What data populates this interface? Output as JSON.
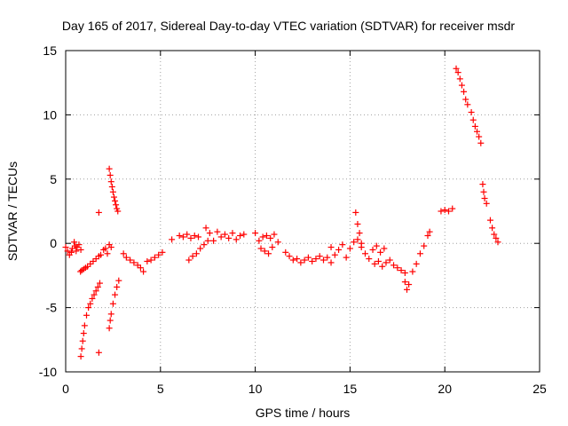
{
  "chart_data": {
    "type": "scatter",
    "title": "Day 165 of 2017, Sidereal Day-to-day VTEC variation (SDTVAR) for receiver msdr",
    "xlabel": "GPS time / hours",
    "ylabel": "SDTVAR / TECUs",
    "xlim": [
      0,
      25
    ],
    "ylim": [
      -10,
      15
    ],
    "xticks": [
      0,
      5,
      10,
      15,
      20,
      25
    ],
    "yticks": [
      -10,
      -5,
      0,
      5,
      10,
      15
    ],
    "xtick_labels": [
      "0",
      "5",
      "10",
      "15",
      "20",
      "25"
    ],
    "ytick_labels": [
      "-10",
      "-5",
      "0",
      "5",
      "10",
      "15"
    ],
    "grid": true,
    "marker": "plus",
    "marker_color": "#ff0000",
    "segments": [
      {
        "x": [
          0.0,
          0.1,
          0.2,
          0.3,
          0.35
        ],
        "y": [
          -0.3,
          -0.6,
          -0.9,
          -0.7,
          -0.4
        ]
      },
      {
        "x": [
          0.45,
          0.5,
          0.55,
          0.6,
          0.7,
          0.8
        ],
        "y": [
          0.1,
          -0.2,
          -0.6,
          -0.3,
          -0.1,
          -0.5
        ]
      },
      {
        "x": [
          0.78,
          0.85,
          0.95,
          1.05,
          1.15,
          1.3,
          1.45,
          1.6,
          1.75,
          1.85
        ],
        "y": [
          -2.2,
          -2.1,
          -2.0,
          -1.9,
          -1.8,
          -1.6,
          -1.4,
          -1.2,
          -1.0,
          -0.9
        ]
      },
      {
        "x": [
          0.8,
          0.85,
          0.9,
          0.95,
          1.0,
          1.1,
          1.2,
          1.3,
          1.4,
          1.5,
          1.6,
          1.7,
          1.8
        ],
        "y": [
          -8.8,
          -8.2,
          -7.6,
          -7.0,
          -6.4,
          -5.6,
          -5.0,
          -4.7,
          -4.3,
          -4.0,
          -3.7,
          -3.4,
          -3.1
        ]
      },
      {
        "x": [
          1.75
        ],
        "y": [
          -8.5
        ]
      },
      {
        "x": [
          1.75
        ],
        "y": [
          2.4
        ]
      },
      {
        "x": [
          2.0,
          2.1,
          2.2,
          2.3,
          2.4
        ],
        "y": [
          -0.5,
          -0.4,
          -0.8,
          -0.1,
          -0.3
        ]
      },
      {
        "x": [
          2.3,
          2.35,
          2.4,
          2.45,
          2.5,
          2.55,
          2.6,
          2.65,
          2.7,
          2.75
        ],
        "y": [
          5.8,
          5.3,
          4.8,
          4.4,
          4.0,
          3.6,
          3.3,
          3.0,
          2.7,
          2.5
        ]
      },
      {
        "x": [
          2.3,
          2.35,
          2.4,
          2.5,
          2.6,
          2.7,
          2.8
        ],
        "y": [
          -6.6,
          -6.0,
          -5.5,
          -4.7,
          -4.0,
          -3.4,
          -2.9
        ]
      },
      {
        "x": [
          3.05,
          3.2,
          3.4,
          3.6,
          3.8,
          3.95,
          4.1
        ],
        "y": [
          -0.8,
          -1.1,
          -1.3,
          -1.5,
          -1.7,
          -1.9,
          -2.2
        ]
      },
      {
        "x": [
          4.3,
          4.5,
          4.7,
          4.9,
          5.1
        ],
        "y": [
          -1.4,
          -1.3,
          -1.1,
          -0.9,
          -0.7
        ]
      },
      {
        "x": [
          5.6
        ],
        "y": [
          0.3
        ]
      },
      {
        "x": [
          6.0,
          6.2,
          6.4,
          6.6,
          6.8,
          7.0
        ],
        "y": [
          0.6,
          0.5,
          0.7,
          0.4,
          0.6,
          0.5
        ]
      },
      {
        "x": [
          6.5,
          6.7,
          6.9,
          7.1,
          7.3,
          7.5
        ],
        "y": [
          -1.3,
          -1.0,
          -0.8,
          -0.4,
          -0.1,
          0.2
        ]
      },
      {
        "x": [
          7.4,
          7.6,
          7.8,
          8.0,
          8.2,
          8.4,
          8.6,
          8.8,
          9.0,
          9.2,
          9.4
        ],
        "y": [
          1.2,
          0.8,
          0.2,
          0.9,
          0.5,
          0.7,
          0.4,
          0.8,
          0.3,
          0.6,
          0.7
        ]
      },
      {
        "x": [
          10.0,
          10.2,
          10.4,
          10.6,
          10.8,
          11.0,
          11.2
        ],
        "y": [
          0.8,
          0.2,
          0.5,
          0.6,
          0.4,
          0.7,
          0.1
        ]
      },
      {
        "x": [
          10.3,
          10.5,
          10.7,
          10.9
        ],
        "y": [
          -0.4,
          -0.6,
          -0.8,
          -0.3
        ]
      },
      {
        "x": [
          11.6,
          11.8,
          12.0,
          12.2,
          12.4,
          12.6,
          12.8,
          13.0,
          13.2,
          13.4,
          13.6,
          13.8,
          14.0
        ],
        "y": [
          -0.7,
          -1.0,
          -1.3,
          -1.2,
          -1.5,
          -1.3,
          -1.1,
          -1.4,
          -1.2,
          -1.0,
          -1.3,
          -1.1,
          -1.5
        ]
      },
      {
        "x": [
          14.0,
          14.2,
          14.4,
          14.6,
          14.8,
          15.0,
          15.2,
          15.4,
          15.6
        ],
        "y": [
          -0.3,
          -0.9,
          -0.5,
          -0.1,
          -1.1,
          -0.4,
          0.1,
          0.3,
          0.0
        ]
      },
      {
        "x": [
          15.3,
          15.4,
          15.5
        ],
        "y": [
          2.4,
          1.5,
          0.8
        ]
      },
      {
        "x": [
          15.6,
          15.8,
          16.0,
          16.2,
          16.4,
          16.6,
          16.8
        ],
        "y": [
          -0.3,
          -0.8,
          -1.2,
          -0.5,
          -0.2,
          -0.7,
          -0.4
        ]
      },
      {
        "x": [
          16.3,
          16.5,
          16.7,
          16.9,
          17.1,
          17.3,
          17.5,
          17.7,
          17.9
        ],
        "y": [
          -1.6,
          -1.4,
          -1.8,
          -1.5,
          -1.3,
          -1.7,
          -1.9,
          -2.1,
          -2.3
        ]
      },
      {
        "x": [
          17.9,
          18.0,
          18.1
        ],
        "y": [
          -3.0,
          -3.6,
          -3.2
        ]
      },
      {
        "x": [
          18.3,
          18.5,
          18.7,
          18.9
        ],
        "y": [
          -2.2,
          -1.6,
          -0.8,
          -0.2
        ]
      },
      {
        "x": [
          19.1,
          19.2
        ],
        "y": [
          0.6,
          0.9
        ]
      },
      {
        "x": [
          19.8,
          20.0,
          20.2,
          20.4
        ],
        "y": [
          2.5,
          2.6,
          2.5,
          2.7
        ]
      },
      {
        "x": [
          20.6,
          20.7,
          20.8,
          20.9,
          21.0,
          21.1,
          21.2,
          21.4,
          21.5,
          21.6,
          21.7,
          21.8,
          21.9
        ],
        "y": [
          13.6,
          13.3,
          12.8,
          12.3,
          11.8,
          11.2,
          10.8,
          10.2,
          9.6,
          9.1,
          8.7,
          8.3,
          7.8
        ]
      },
      {
        "x": [
          22.0,
          22.05,
          22.1,
          22.2
        ],
        "y": [
          4.6,
          4.0,
          3.5,
          3.1
        ]
      },
      {
        "x": [
          22.4,
          22.5,
          22.6,
          22.7,
          22.8
        ],
        "y": [
          1.8,
          1.2,
          0.7,
          0.4,
          0.1
        ]
      }
    ]
  }
}
